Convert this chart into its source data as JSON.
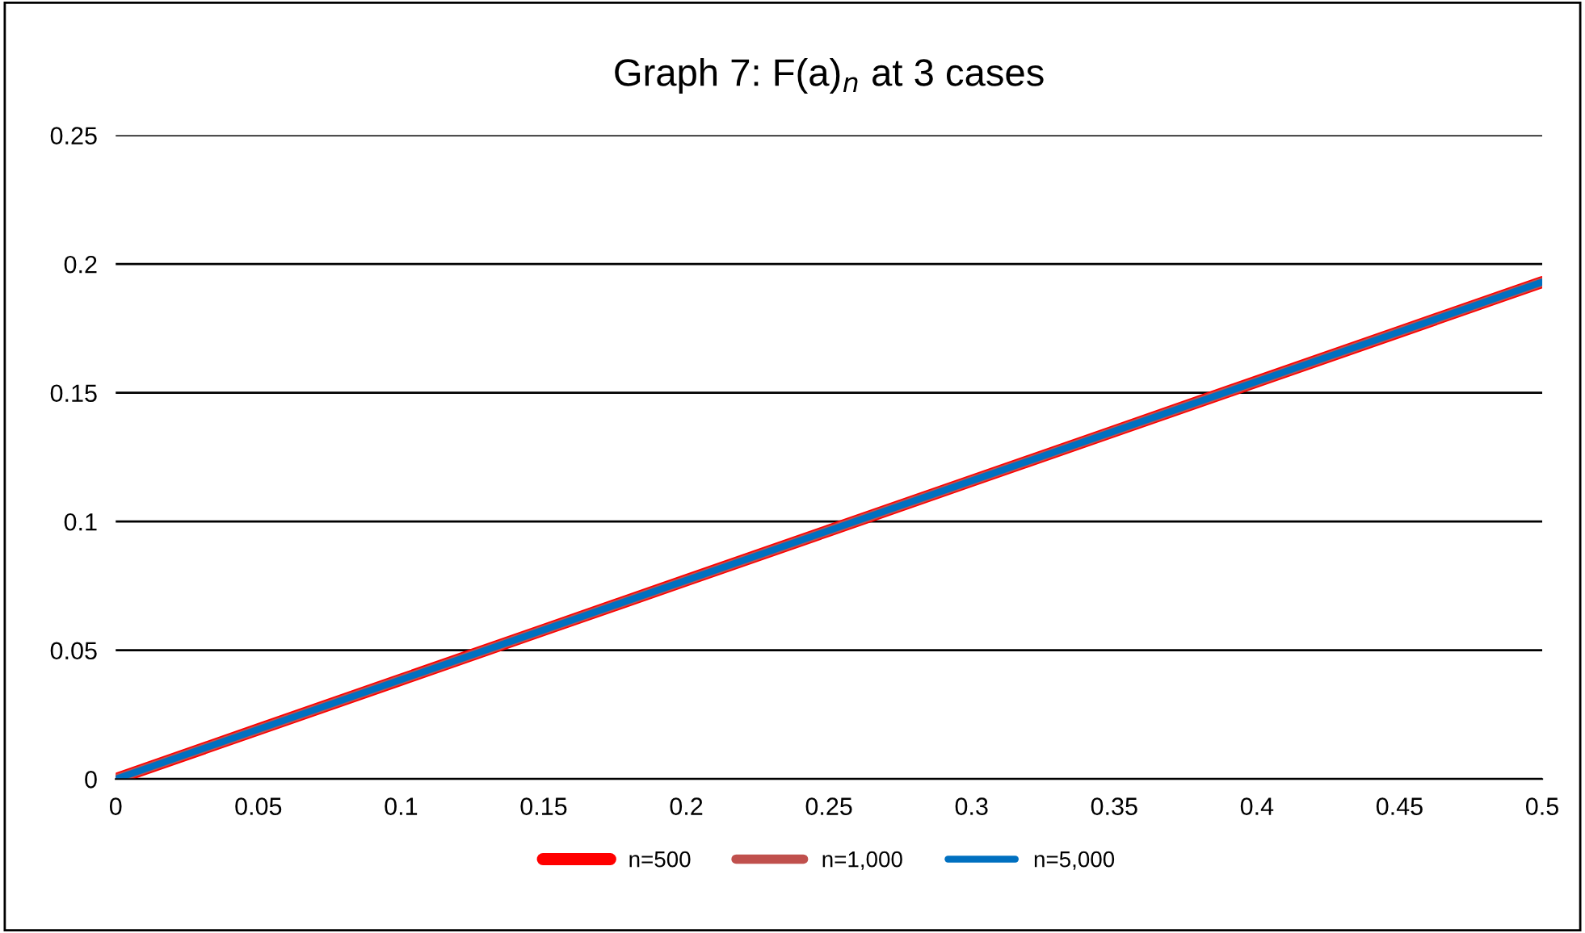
{
  "chart_data": {
    "type": "line",
    "title": "Graph 7: F(a)$_{n}$ at 3 cases",
    "x": [
      0,
      0.05,
      0.1,
      0.15,
      0.2,
      0.25,
      0.3,
      0.35,
      0.4,
      0.45,
      0.5
    ],
    "series": [
      {
        "name": "n=500",
        "color": "#ff0000",
        "values": [
          0,
          0.0193,
          0.0386,
          0.0579,
          0.0772,
          0.0965,
          0.1158,
          0.1351,
          0.1544,
          0.1737,
          0.193
        ]
      },
      {
        "name": "n=1,000",
        "color": "#c0504d",
        "values": [
          0,
          0.0193,
          0.0386,
          0.0579,
          0.0772,
          0.0965,
          0.1158,
          0.1351,
          0.1544,
          0.1737,
          0.193
        ]
      },
      {
        "name": "n=5,000",
        "color": "#0070c0",
        "values": [
          0,
          0.0193,
          0.0386,
          0.0579,
          0.0772,
          0.0965,
          0.1158,
          0.1351,
          0.1544,
          0.1737,
          0.193
        ]
      }
    ],
    "xlim": [
      0,
      0.5
    ],
    "xticks": [
      0,
      0.05,
      0.1,
      0.15,
      0.2,
      0.25,
      0.3,
      0.35,
      0.4,
      0.45,
      0.5
    ],
    "ylim": [
      0,
      0.25
    ],
    "yticks": [
      0,
      0.05,
      0.1,
      0.15,
      0.2,
      0.25
    ],
    "grid": "y",
    "legend": "bottom",
    "marker": "none",
    "line_style": "solid"
  }
}
